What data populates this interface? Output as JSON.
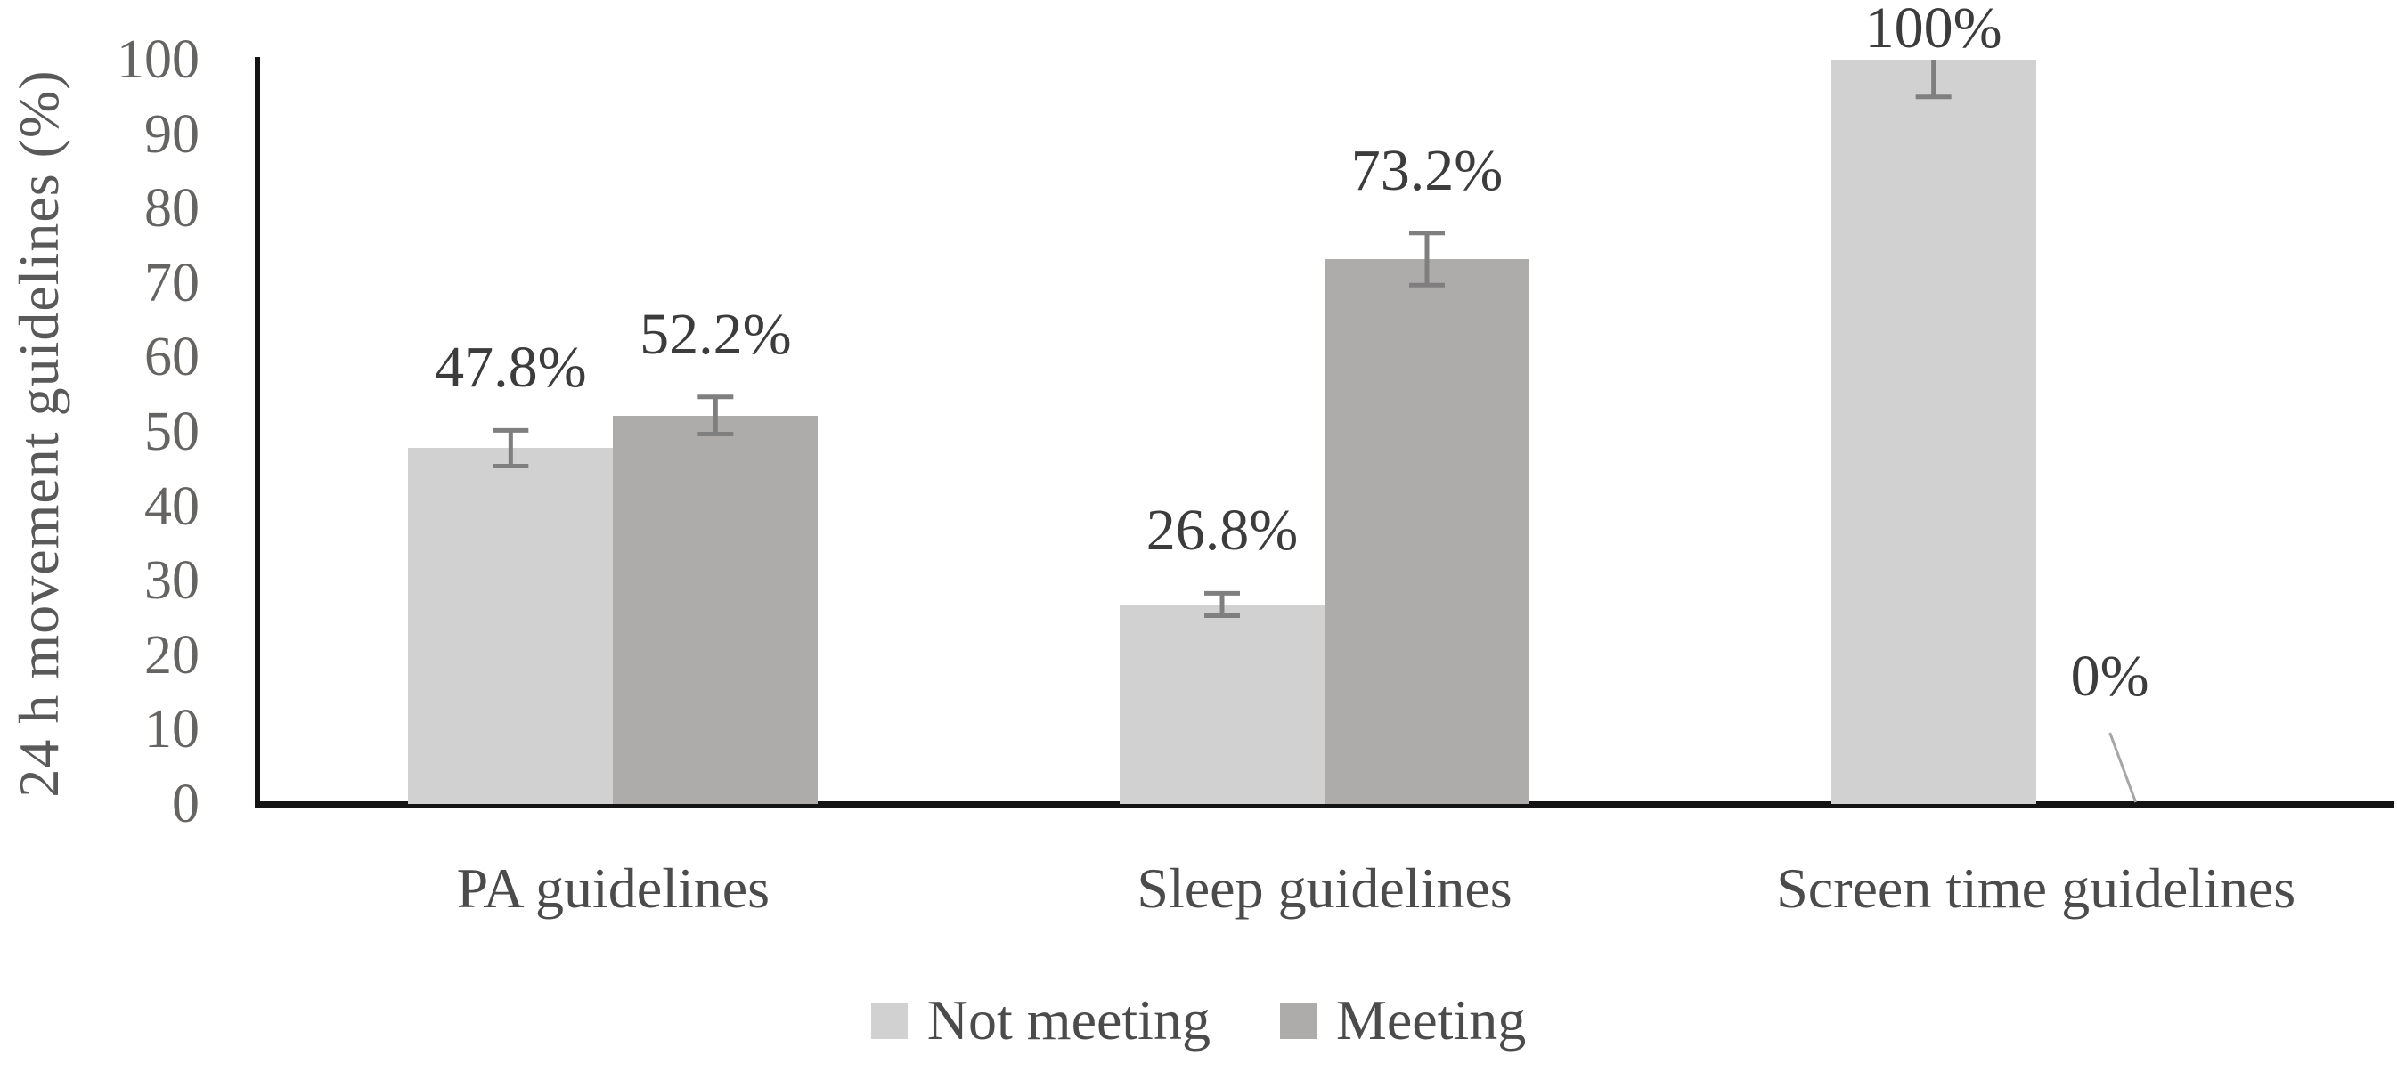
{
  "figure": {
    "background": "#ffffff",
    "axis_color": "#141414",
    "tick_label_color": "#666463",
    "label_color": "#3d3c3c"
  },
  "chart_data": {
    "type": "bar",
    "title": "",
    "xlabel": "",
    "ylabel": "24 h movement guidelines (%)",
    "ylim": [
      0,
      100
    ],
    "yticks": [
      0,
      10,
      20,
      30,
      40,
      50,
      60,
      70,
      80,
      90,
      100
    ],
    "grid": false,
    "legend_position": "bottom",
    "error_bar_color": "#7f7f7f",
    "leader_line_color": "#a6a6a6",
    "categories": [
      "PA guidelines",
      "Sleep guidelines",
      "Screen time guidelines"
    ],
    "series": [
      {
        "name": "Not meeting",
        "color": "#d2d1d1",
        "values": [
          47.8,
          26.8,
          100
        ],
        "labels": [
          "47.8%",
          "26.8%",
          "100%"
        ],
        "errors": [
          2.4,
          1.5,
          5
        ]
      },
      {
        "name": "Meeting",
        "color": "#aeabab",
        "values": [
          52.2,
          73.2,
          0
        ],
        "labels": [
          "52.2%",
          "73.2%",
          "0%"
        ],
        "errors": [
          2.5,
          3.5,
          0
        ]
      }
    ]
  }
}
